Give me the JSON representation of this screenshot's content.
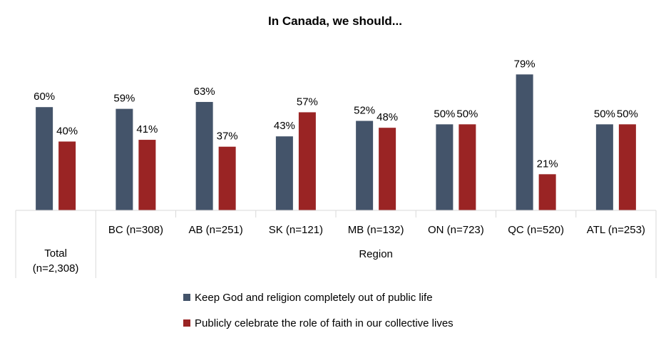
{
  "chart_data": {
    "type": "bar",
    "title": "In Canada, we should...",
    "categories": [
      "Total\n(n=2,308)",
      "BC (n=308)",
      "AB (n=251)",
      "SK (n=121)",
      "MB (n=132)",
      "ON (n=723)",
      "QC (n=520)",
      "ATL (n=253)"
    ],
    "group_label": "Region",
    "series": [
      {
        "name": "Keep God and religion completely out of public life",
        "color": "#44546A",
        "values": [
          60,
          59,
          63,
          43,
          52,
          50,
          79,
          50
        ]
      },
      {
        "name": "Publicly celebrate the role of faith in our collective lives",
        "color": "#9A2424",
        "values": [
          40,
          41,
          37,
          57,
          48,
          50,
          21,
          50
        ]
      }
    ],
    "value_suffix": "%",
    "ylim": [
      0,
      100
    ],
    "legend_position": "bottom",
    "grid": false
  }
}
